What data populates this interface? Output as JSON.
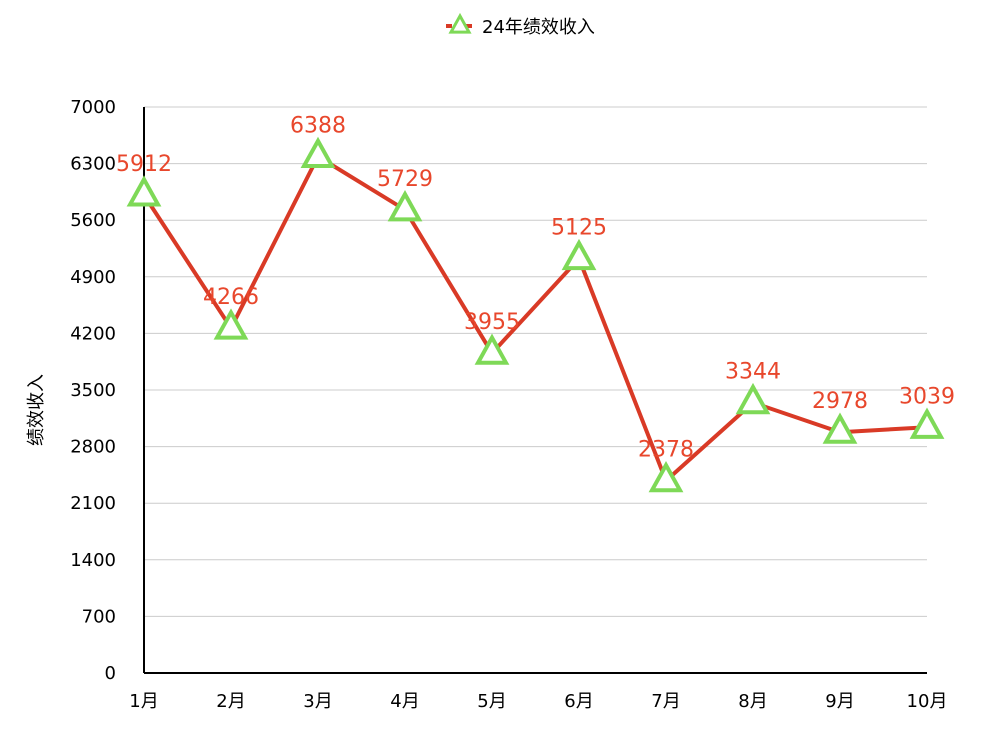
{
  "colors": {
    "line": "#d93a26",
    "marker": "#7ed957",
    "label": "#e8472c",
    "grid": "#cccccc",
    "axis": "#000000"
  },
  "chart_data": {
    "type": "line",
    "title": "",
    "xlabel": "",
    "ylabel": "绩效收入",
    "categories": [
      "1月",
      "2月",
      "3月",
      "4月",
      "5月",
      "6月",
      "7月",
      "8月",
      "9月",
      "10月"
    ],
    "series": [
      {
        "name": "24年绩效收入",
        "values": [
          5912,
          4266,
          6388,
          5729,
          3955,
          5125,
          2378,
          3344,
          2978,
          3039
        ],
        "marker": "triangle"
      }
    ],
    "ylim": [
      0,
      7000
    ],
    "yticks": [
      0,
      700,
      1400,
      2100,
      2800,
      3500,
      4200,
      4900,
      5600,
      6300,
      7000
    ],
    "grid": true,
    "legend": "top-center",
    "data_labels": true
  }
}
